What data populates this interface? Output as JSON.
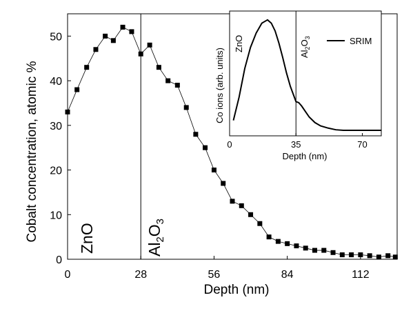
{
  "chart_data": [
    {
      "type": "line",
      "xlabel": "Depth (nm)",
      "ylabel": "Cobalt concentration, atomic %",
      "xlim": [
        0,
        126
      ],
      "ylim": [
        0,
        55
      ],
      "xticks": [
        "0",
        "28",
        "56",
        "84",
        "112"
      ],
      "xtick_values": [
        0,
        28,
        56,
        84,
        112
      ],
      "yticks": [
        "0",
        "10",
        "20",
        "30",
        "40",
        "50"
      ],
      "ytick_values": [
        0,
        10,
        20,
        30,
        40,
        50
      ],
      "boundary_x": 28,
      "regions": {
        "left": "ZnO",
        "right_base": "Al",
        "right_sub1": "2",
        "right_mid": "O",
        "right_sub2": "3"
      },
      "series": [
        {
          "marker": "square",
          "x": [
            0,
            3.6,
            7.3,
            10.8,
            14.4,
            17.5,
            21.1,
            24.5,
            28.0,
            31.4,
            34.9,
            38.4,
            42.0,
            45.4,
            49.0,
            52.6,
            56.0,
            59.5,
            63.0,
            66.5,
            70.0,
            73.5,
            77.0,
            80.5,
            84.0,
            87.5,
            91.0,
            94.5,
            98.0,
            101.5,
            105.0,
            108.5,
            112.0,
            115.5,
            119.0,
            122.5,
            125.3
          ],
          "y": [
            33,
            38,
            43,
            47,
            50,
            49,
            52,
            51,
            46,
            48,
            43,
            40,
            39,
            34,
            28,
            25,
            20,
            17,
            13,
            12,
            10,
            8,
            5,
            4,
            3.5,
            3,
            2.5,
            2,
            2,
            1.5,
            1,
            1,
            1,
            0.8,
            0.5,
            0.8,
            0.5
          ]
        }
      ]
    },
    {
      "type": "line",
      "xlabel": "Depth (nm)",
      "ylabel": "Co ions (arb. units)",
      "xlim": [
        0,
        80
      ],
      "xticks": [
        "0",
        "35",
        "70"
      ],
      "xtick_values": [
        0,
        35,
        70
      ],
      "boundary_x": 35,
      "legend": "top-right",
      "regions": {
        "left": "ZnO",
        "right_base": "Al",
        "right_sub1": "2",
        "right_mid": "O",
        "right_sub2": "3"
      },
      "series": [
        {
          "name": "SRIM",
          "x": [
            2,
            5,
            8,
            11,
            14,
            17,
            20,
            22,
            24,
            26,
            28,
            30,
            32,
            33.5,
            35,
            36.5,
            38,
            40,
            42,
            45,
            48,
            52,
            56,
            60,
            65,
            70,
            75,
            80
          ],
          "y": [
            0.09,
            0.3,
            0.56,
            0.75,
            0.88,
            0.97,
            1.0,
            0.97,
            0.9,
            0.79,
            0.66,
            0.52,
            0.4,
            0.33,
            0.26,
            0.25,
            0.22,
            0.17,
            0.12,
            0.07,
            0.04,
            0.02,
            0.005,
            0,
            0,
            0,
            0,
            0
          ]
        }
      ]
    }
  ]
}
